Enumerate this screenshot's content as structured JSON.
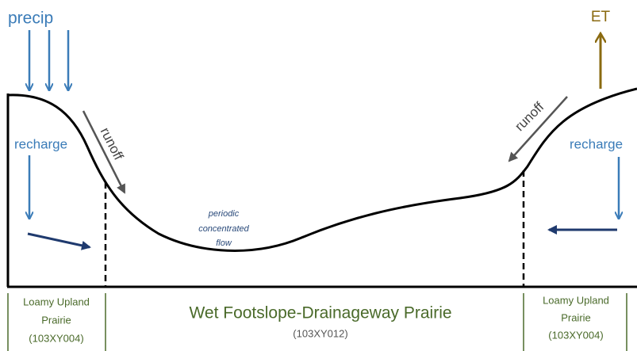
{
  "labels": {
    "precip": "precip",
    "et": "ET",
    "recharge_left": "recharge",
    "runoff_left": "runoff",
    "runoff_right": "runoff",
    "recharge_right": "recharge",
    "flow": [
      "periodic",
      "concentrated",
      "flow"
    ]
  },
  "zones": [
    {
      "lines": [
        "Loamy Upland",
        "Prairie",
        "(103XY004)"
      ]
    },
    {
      "name": "Wet Footslope-Drainageway Prairie",
      "code": "(103XY012)"
    },
    {
      "lines": [
        "Loamy Upland",
        "Prairie",
        "(103XY004)"
      ]
    }
  ]
}
